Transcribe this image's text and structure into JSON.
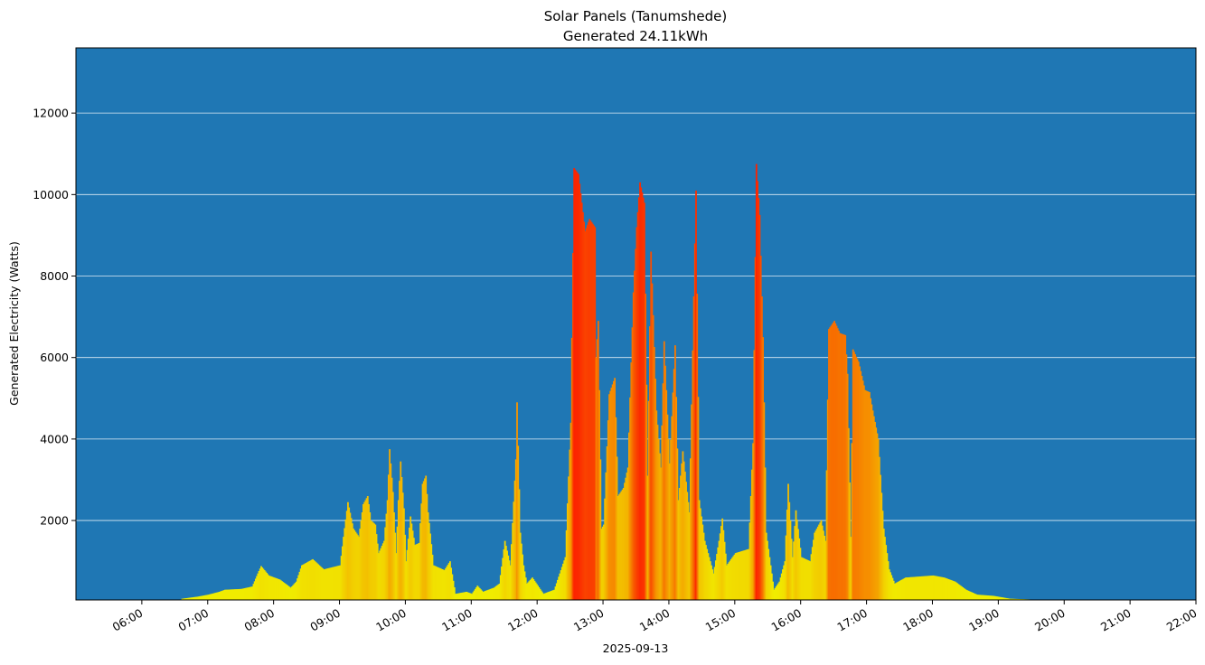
{
  "chart_data": {
    "type": "bar",
    "title": "Solar Panels (Tanumshede)",
    "subtitle": "Generated 24.11kWh",
    "xlabel": "2025-09-13",
    "ylabel": "Generated Electricity (Watts)",
    "x_unit": "time of day (hours, 2025-09-13)",
    "xlim": [
      "05:00",
      "22:00"
    ],
    "ylim": [
      50,
      13600
    ],
    "y_ticks": [
      2000,
      4000,
      6000,
      8000,
      10000,
      12000
    ],
    "y_tick_labels": [
      "2000",
      "4000",
      "6000",
      "8000",
      "10000",
      "12000"
    ],
    "x_ticks": [
      "06:00",
      "07:00",
      "08:00",
      "09:00",
      "10:00",
      "11:00",
      "12:00",
      "13:00",
      "14:00",
      "15:00",
      "16:00",
      "17:00",
      "18:00",
      "19:00",
      "20:00",
      "21:00",
      "22:00"
    ],
    "grid": "horizontal",
    "background_color": "#1f77b4",
    "grid_color": "#ffffff",
    "colormap": "autumn_r (yellow at low values, red at high values)",
    "interpolation_points": [
      [
        "06:35",
        0
      ],
      [
        "06:36",
        80
      ],
      [
        "06:50",
        130
      ],
      [
        "07:00",
        180
      ],
      [
        "07:10",
        250
      ],
      [
        "07:15",
        300
      ],
      [
        "07:30",
        320
      ],
      [
        "07:40",
        380
      ],
      [
        "07:45",
        700
      ],
      [
        "07:48",
        880
      ],
      [
        "07:55",
        650
      ],
      [
        "08:05",
        550
      ],
      [
        "08:15",
        350
      ],
      [
        "08:20",
        500
      ],
      [
        "08:25",
        900
      ],
      [
        "08:35",
        1050
      ],
      [
        "08:45",
        800
      ],
      [
        "09:00",
        900
      ],
      [
        "09:03",
        1600
      ],
      [
        "09:07",
        2450
      ],
      [
        "09:12",
        1800
      ],
      [
        "09:17",
        1600
      ],
      [
        "09:21",
        2400
      ],
      [
        "09:25",
        2600
      ],
      [
        "09:28",
        2000
      ],
      [
        "09:32",
        1900
      ],
      [
        "09:35",
        1200
      ],
      [
        "09:40",
        1500
      ],
      [
        "09:43",
        2500
      ],
      [
        "09:45",
        3750
      ],
      [
        "09:48",
        2700
      ],
      [
        "09:51",
        1200
      ],
      [
        "09:53",
        2500
      ],
      [
        "09:55",
        3450
      ],
      [
        "09:58",
        2300
      ],
      [
        "10:00",
        1000
      ],
      [
        "10:04",
        2100
      ],
      [
        "10:08",
        1400
      ],
      [
        "10:12",
        1450
      ],
      [
        "10:15",
        2900
      ],
      [
        "10:18",
        3100
      ],
      [
        "10:20",
        2200
      ],
      [
        "10:25",
        900
      ],
      [
        "10:35",
        780
      ],
      [
        "10:40",
        1000
      ],
      [
        "10:45",
        200
      ],
      [
        "10:55",
        250
      ],
      [
        "11:00",
        200
      ],
      [
        "11:05",
        400
      ],
      [
        "11:10",
        250
      ],
      [
        "11:20",
        350
      ],
      [
        "11:25",
        450
      ],
      [
        "11:30",
        1500
      ],
      [
        "11:35",
        900
      ],
      [
        "11:40",
        3500
      ],
      [
        "11:41",
        4900
      ],
      [
        "11:44",
        1700
      ],
      [
        "11:47",
        900
      ],
      [
        "11:50",
        450
      ],
      [
        "11:55",
        600
      ],
      [
        "12:05",
        200
      ],
      [
        "12:15",
        300
      ],
      [
        "12:25",
        1100
      ],
      [
        "12:30",
        4400
      ],
      [
        "12:33",
        10650
      ],
      [
        "12:37",
        10500
      ],
      [
        "12:40",
        9800
      ],
      [
        "12:43",
        9100
      ],
      [
        "12:47",
        9400
      ],
      [
        "12:52",
        9200
      ],
      [
        "12:53",
        6000
      ],
      [
        "12:55",
        6900
      ],
      [
        "12:58",
        1800
      ],
      [
        "13:00",
        1900
      ],
      [
        "13:05",
        5100
      ],
      [
        "13:10",
        5500
      ],
      [
        "13:13",
        2600
      ],
      [
        "13:18",
        2800
      ],
      [
        "13:22",
        3300
      ],
      [
        "13:27",
        7600
      ],
      [
        "13:30",
        9200
      ],
      [
        "13:33",
        10300
      ],
      [
        "13:37",
        9800
      ],
      [
        "13:40",
        3100
      ],
      [
        "13:43",
        8600
      ],
      [
        "13:48",
        4700
      ],
      [
        "13:52",
        3300
      ],
      [
        "13:55",
        6400
      ],
      [
        "14:00",
        3400
      ],
      [
        "14:05",
        6300
      ],
      [
        "14:08",
        2500
      ],
      [
        "14:12",
        3700
      ],
      [
        "14:18",
        2200
      ],
      [
        "14:22",
        7500
      ],
      [
        "14:24",
        10100
      ],
      [
        "14:27",
        2500
      ],
      [
        "14:32",
        1500
      ],
      [
        "14:40",
        700
      ],
      [
        "14:45",
        1500
      ],
      [
        "14:48",
        2050
      ],
      [
        "14:52",
        900
      ],
      [
        "15:00",
        1200
      ],
      [
        "15:12",
        1300
      ],
      [
        "15:16",
        3900
      ],
      [
        "15:19",
        10750
      ],
      [
        "15:22",
        9500
      ],
      [
        "15:25",
        6500
      ],
      [
        "15:28",
        1700
      ],
      [
        "15:35",
        300
      ],
      [
        "15:40",
        500
      ],
      [
        "15:45",
        1000
      ],
      [
        "15:48",
        2900
      ],
      [
        "15:52",
        1100
      ],
      [
        "15:55",
        2250
      ],
      [
        "16:00",
        1100
      ],
      [
        "16:08",
        1000
      ],
      [
        "16:12",
        1700
      ],
      [
        "16:18",
        2000
      ],
      [
        "16:22",
        1500
      ],
      [
        "16:25",
        6700
      ],
      [
        "16:30",
        6900
      ],
      [
        "16:35",
        6600
      ],
      [
        "16:40",
        6550
      ],
      [
        "16:42",
        5600
      ],
      [
        "16:45",
        1600
      ],
      [
        "16:47",
        6200
      ],
      [
        "16:52",
        5900
      ],
      [
        "16:58",
        5200
      ],
      [
        "17:02",
        5150
      ],
      [
        "17:05",
        4700
      ],
      [
        "17:10",
        4000
      ],
      [
        "17:15",
        1800
      ],
      [
        "17:20",
        800
      ],
      [
        "17:25",
        450
      ],
      [
        "17:35",
        600
      ],
      [
        "18:00",
        650
      ],
      [
        "18:10",
        600
      ],
      [
        "18:20",
        500
      ],
      [
        "18:30",
        300
      ],
      [
        "18:40",
        180
      ],
      [
        "18:55",
        150
      ],
      [
        "19:10",
        80
      ],
      [
        "19:30",
        60
      ],
      [
        "20:00",
        55
      ],
      [
        "20:02",
        0
      ]
    ]
  }
}
